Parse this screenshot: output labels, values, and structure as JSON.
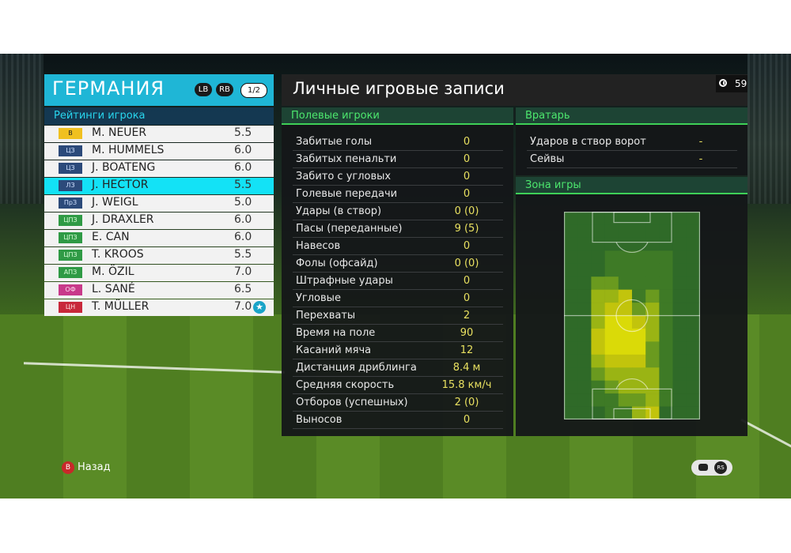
{
  "team": {
    "name": "ГЕРМАНИЯ",
    "lb": "LB",
    "rb": "RB",
    "page": "1/2"
  },
  "ratings_title": "Рейтинги игрока",
  "players": [
    {
      "pos": "В",
      "pos_color": "#f0c020",
      "pos_text": "#222",
      "name": "M. NEUER",
      "rating": "5.5"
    },
    {
      "pos": "ЦЗ",
      "pos_color": "#2c4a7a",
      "pos_text": "#cfe0ff",
      "name": "M. HUMMELS",
      "rating": "6.0"
    },
    {
      "pos": "ЦЗ",
      "pos_color": "#2c4a7a",
      "pos_text": "#cfe0ff",
      "name": "J. BOATENG",
      "rating": "6.0"
    },
    {
      "pos": "ЛЗ",
      "pos_color": "#2c4a7a",
      "pos_text": "#cfe0ff",
      "name": "J. HECTOR",
      "rating": "5.5",
      "selected": true
    },
    {
      "pos": "ПрЗ",
      "pos_color": "#2c4a7a",
      "pos_text": "#cfe0ff",
      "name": "J. WEIGL",
      "rating": "5.0"
    },
    {
      "pos": "ЦПЗ",
      "pos_color": "#2f9a45",
      "pos_text": "#d8ffd8",
      "name": "J. DRAXLER",
      "rating": "6.0"
    },
    {
      "pos": "ЦПЗ",
      "pos_color": "#2f9a45",
      "pos_text": "#d8ffd8",
      "name": "E. CAN",
      "rating": "6.0"
    },
    {
      "pos": "ЦПЗ",
      "pos_color": "#2f9a45",
      "pos_text": "#d8ffd8",
      "name": "T. KROOS",
      "rating": "5.5"
    },
    {
      "pos": "АПЗ",
      "pos_color": "#2f9a45",
      "pos_text": "#d8ffd8",
      "name": "M. ÖZIL",
      "rating": "7.0"
    },
    {
      "pos": "ОФ",
      "pos_color": "#c83a8a",
      "pos_text": "#ffe0f0",
      "name": "L. SANÉ",
      "rating": "6.5"
    },
    {
      "pos": "ЦН",
      "pos_color": "#c8283a",
      "pos_text": "#ffe0e0",
      "name": "T. MÜLLER",
      "rating": "7.0",
      "star": true
    }
  ],
  "main_title": "Личные игровые записи",
  "timer": "59",
  "field_section": "Полевые игроки",
  "field_stats": [
    {
      "label": "Забитые голы",
      "value": "0"
    },
    {
      "label": "Забитых пенальти",
      "value": "0"
    },
    {
      "label": "Забито с угловых",
      "value": "0"
    },
    {
      "label": "Голевые передачи",
      "value": "0"
    },
    {
      "label": "Удары (в створ)",
      "value": "0 (0)"
    },
    {
      "label": "Пасы (переданные)",
      "value": "9 (5)"
    },
    {
      "label": "Навесов",
      "value": "0"
    },
    {
      "label": "Фолы (офсайд)",
      "value": "0 (0)"
    },
    {
      "label": "Штрафные удары",
      "value": "0"
    },
    {
      "label": "Угловые",
      "value": "0"
    },
    {
      "label": "Перехваты",
      "value": "2"
    },
    {
      "label": "Время на поле",
      "value": "90"
    },
    {
      "label": "Касаний мяча",
      "value": "12"
    },
    {
      "label": "Дистанция дриблинга",
      "value": "8.4 м"
    },
    {
      "label": "Средняя скорость",
      "value": "15.8 км/ч"
    },
    {
      "label": "Отборов (успешных)",
      "value": "2 (0)"
    },
    {
      "label": "Выносов",
      "value": "0"
    }
  ],
  "gk_section": "Вратарь",
  "gk_stats": [
    {
      "label": "Ударов в створ ворот",
      "value": "-"
    },
    {
      "label": "Сейвы",
      "value": "-"
    }
  ],
  "zone_section": "Зона игры",
  "heatmap": {
    "cols": 10,
    "rows": 16,
    "levels": [
      [
        0,
        0,
        0,
        0,
        0,
        0,
        0,
        0,
        0,
        0
      ],
      [
        0,
        0,
        0,
        0,
        0,
        0,
        0,
        0,
        0,
        0
      ],
      [
        0,
        0,
        0,
        0,
        0,
        0,
        0,
        0,
        0,
        0
      ],
      [
        0,
        0,
        0,
        1,
        1,
        1,
        1,
        1,
        0,
        0
      ],
      [
        0,
        0,
        0,
        1,
        1,
        1,
        1,
        1,
        0,
        0
      ],
      [
        0,
        0,
        2,
        2,
        1,
        1,
        1,
        1,
        0,
        0
      ],
      [
        0,
        0,
        3,
        3,
        4,
        1,
        2,
        1,
        0,
        0
      ],
      [
        0,
        0,
        3,
        4,
        4,
        2,
        3,
        1,
        0,
        0
      ],
      [
        0,
        0,
        3,
        5,
        5,
        4,
        3,
        1,
        0,
        0
      ],
      [
        0,
        0,
        4,
        5,
        5,
        5,
        3,
        1,
        0,
        0
      ],
      [
        0,
        0,
        4,
        5,
        5,
        5,
        2,
        1,
        0,
        0
      ],
      [
        0,
        0,
        3,
        4,
        4,
        4,
        2,
        1,
        0,
        0
      ],
      [
        0,
        0,
        2,
        3,
        3,
        3,
        3,
        1,
        0,
        0
      ],
      [
        0,
        0,
        1,
        2,
        3,
        3,
        3,
        1,
        0,
        0
      ],
      [
        0,
        0,
        1,
        1,
        2,
        2,
        3,
        1,
        0,
        0
      ],
      [
        0,
        0,
        0,
        1,
        1,
        3,
        4,
        0,
        0,
        0
      ]
    ],
    "palette": [
      "#2f6a28",
      "#3e7a26",
      "#6a9a1f",
      "#9ab414",
      "#c2c40c",
      "#dada08"
    ]
  },
  "back_button": "B",
  "back_label": "Назад",
  "rs_label": "RS"
}
